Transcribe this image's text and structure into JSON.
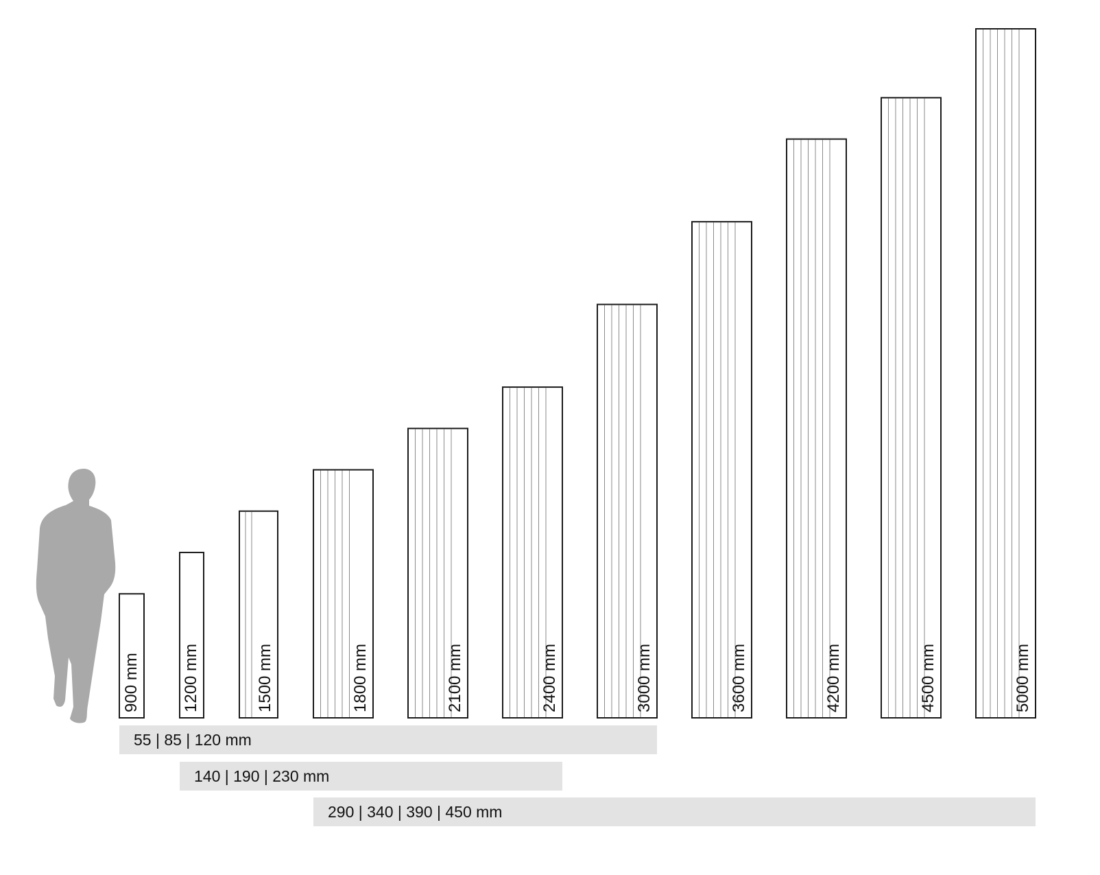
{
  "figure": {
    "human_silhouette": "person-silhouette"
  },
  "panels": [
    {
      "label": "900 mm",
      "height_mm": 900,
      "inner_lines": 0
    },
    {
      "label": "1200 mm",
      "height_mm": 1200,
      "inner_lines": 0
    },
    {
      "label": "1500 mm",
      "height_mm": 1500,
      "inner_lines": 2
    },
    {
      "label": "1800 mm",
      "height_mm": 1800,
      "inner_lines": 5
    },
    {
      "label": "2100 mm",
      "height_mm": 2100,
      "inner_lines": 6
    },
    {
      "label": "2400 mm",
      "height_mm": 2400,
      "inner_lines": 6
    },
    {
      "label": "3000 mm",
      "height_mm": 3000,
      "inner_lines": 6
    },
    {
      "label": "3600 mm",
      "height_mm": 3600,
      "inner_lines": 6
    },
    {
      "label": "4200 mm",
      "height_mm": 4200,
      "inner_lines": 6
    },
    {
      "label": "4500 mm",
      "height_mm": 4500,
      "inner_lines": 6
    },
    {
      "label": "5000 mm",
      "height_mm": 5000,
      "inner_lines": 6
    }
  ],
  "width_bands": [
    {
      "label": "55 | 85 | 120 mm",
      "from_panel": 0,
      "to_panel": 6
    },
    {
      "label": "140 | 190 | 230 mm",
      "from_panel": 1,
      "to_panel": 5
    },
    {
      "label": "290 | 340 | 390 | 450 mm",
      "from_panel": 3,
      "to_panel": 10
    }
  ],
  "colors": {
    "panel_stroke": "#1a1a1a",
    "inner_line": "#8a8a8a",
    "band_fill": "#e3e3e3",
    "silhouette": "#a9a9a9",
    "text": "#111111"
  }
}
